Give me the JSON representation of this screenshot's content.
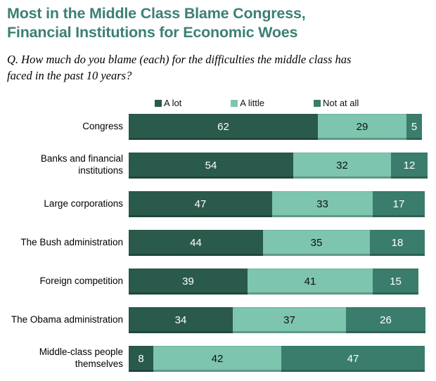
{
  "title": "Most in the Middle Class Blame Congress, Financial Institutions for Economic Woes",
  "title_lines": [
    "Most in the Middle Class Blame Congress,",
    "Financial Institutions for Economic Woes"
  ],
  "question": "Q. How much do you blame (each) for the difficulties the middle class has faced in the past 10 years?",
  "question_lines": [
    "Q. How much do you blame (each) for the difficulties the middle class has",
    "faced in the past 10 years?"
  ],
  "colors": {
    "title": "#3c8073",
    "a_lot": "#2a5a4b",
    "a_little": "#7dc5ae",
    "not_at_all": "#3a7d6c",
    "background": "#ffffff"
  },
  "chart_data": {
    "type": "bar",
    "orientation": "horizontal",
    "stacked": true,
    "grid": false,
    "legend_position": "top",
    "value_labels": "inside",
    "xlim": [
      0,
      100
    ],
    "categories": [
      "Congress",
      "Banks and financial institutions",
      "Large corporations",
      "The Bush administration",
      "Foreign competition",
      "The Obama administration",
      "Middle-class people themselves"
    ],
    "series": [
      {
        "name": "A lot",
        "color": "#2a5a4b",
        "text_color": "#ffffff",
        "values": [
          62,
          54,
          47,
          44,
          39,
          34,
          8
        ]
      },
      {
        "name": "A little",
        "color": "#7dc5ae",
        "text_color": "#111111",
        "values": [
          29,
          32,
          33,
          35,
          41,
          37,
          42
        ]
      },
      {
        "name": "Not at all",
        "color": "#3a7d6c",
        "text_color": "#ffffff",
        "values": [
          5,
          12,
          17,
          18,
          15,
          26,
          47
        ]
      }
    ]
  }
}
